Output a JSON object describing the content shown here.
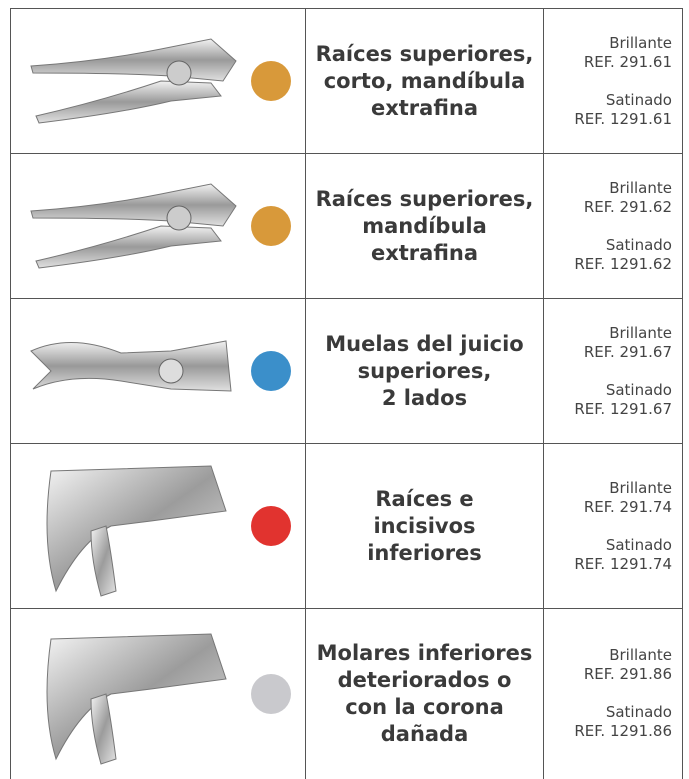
{
  "table": {
    "rows": [
      {
        "description": [
          "Raíces superiores,",
          "corto, mandíbula",
          "extrafina"
        ],
        "dot_color": "#d8993a",
        "finish_1": "Brillante",
        "ref_1": "REF. 291.61",
        "finish_2": "Satinado",
        "ref_2": "REF. 1291.61",
        "shape": "upper"
      },
      {
        "description": [
          "Raíces superiores,",
          "mandíbula",
          "extrafina"
        ],
        "dot_color": "#d8993a",
        "finish_1": "Brillante",
        "ref_1": "REF. 291.62",
        "finish_2": "Satinado",
        "ref_2": "REF. 1291.62",
        "shape": "upper"
      },
      {
        "description": [
          "Muelas del juicio",
          "superiores,",
          "2 lados"
        ],
        "dot_color": "#3b8fca",
        "finish_1": "Brillante",
        "ref_1": "REF. 291.67",
        "finish_2": "Satinado",
        "ref_2": "REF. 1291.67",
        "shape": "wisdom"
      },
      {
        "description": [
          "Raíces e",
          "incisivos",
          "inferiores"
        ],
        "dot_color": "#e1332f",
        "finish_1": "Brillante",
        "ref_1": "REF. 291.74",
        "finish_2": "Satinado",
        "ref_2": "REF. 1291.74",
        "shape": "lower"
      },
      {
        "description": [
          "Molares inferiores",
          "deteriorados o",
          "con la corona",
          "dañada"
        ],
        "dot_color": "#c9c9cd",
        "finish_1": "Brillante",
        "ref_1": "REF. 291.86",
        "finish_2": "Satinado",
        "ref_2": "REF. 1291.86",
        "shape": "lower"
      }
    ]
  }
}
